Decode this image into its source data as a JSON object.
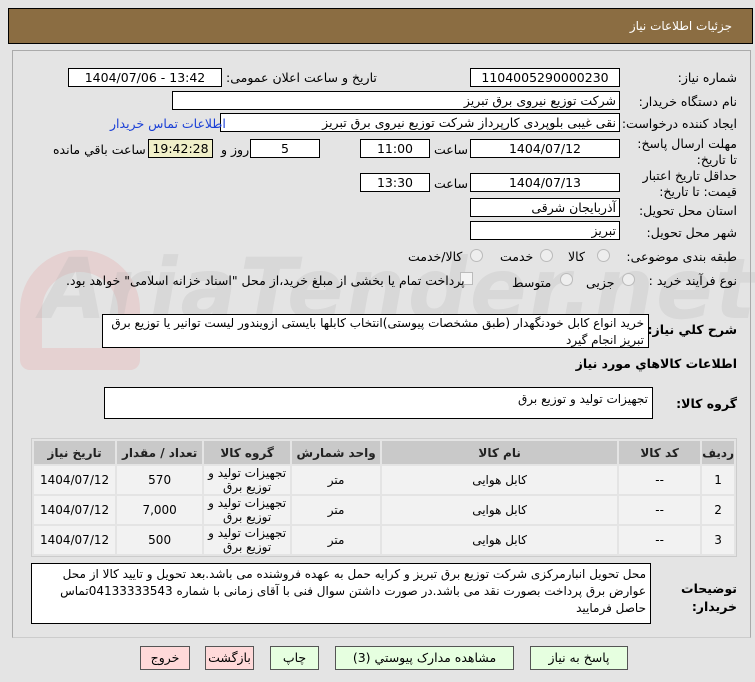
{
  "header": {
    "title": "جزئیات اطلاعات نیاز"
  },
  "watermark": "AriaTender.net",
  "fields": {
    "need_number_label": "شماره نیاز:",
    "need_number": "1104005290000230",
    "announce_label": "تاریخ و ساعت اعلان عمومی:",
    "announce_value": "1404/07/06 - 13:42",
    "buyer_label": "نام دستگاه خریدار:",
    "buyer_value": "شرکت توزیع نیروی برق تبریز",
    "creator_label": "ایجاد کننده درخواست:",
    "creator_value": "نقی غیبی بلوپردی کارپرداز شرکت توزیع نیروی برق تبریز",
    "contact_link": "اطلاعات تماس خریدار",
    "deadline_label": "مهلت ارسال پاسخ: تا تاریخ:",
    "deadline_date": "1404/07/12",
    "time_label": "ساعت",
    "deadline_time": "11:00",
    "days": "5",
    "days_label": "روز و",
    "remaining": "19:42:28",
    "remaining_label": "ساعت باقي مانده",
    "validity_label": "حداقل تاریخ اعتبار قیمت: تا تاریخ:",
    "validity_date": "1404/07/13",
    "validity_time": "13:30",
    "province_label": "استان محل تحویل:",
    "province_value": "آذربایجان شرقی",
    "city_label": "شهر محل تحویل:",
    "city_value": "تبریز",
    "category_label": "طبقه بندی موضوعی:",
    "category_options": [
      "کالا",
      "خدمت",
      "کالا/خدمت"
    ],
    "category_selected": "کالا",
    "process_label": "نوع فرآیند خرید :",
    "process_options": [
      "جزیی",
      "متوسط"
    ],
    "treasury_text": "پرداخت تمام یا بخشی از مبلغ خرید،از محل \"اسناد خزانه اسلامی\" خواهد بود.",
    "description_label": "شرح کلي نیاز:",
    "description": "خرید انواع کابل خودنگهدار (طبق مشخصات پیوستی)انتخاب کابلها بایستی ازویندور لیست توانیر یا توزیع برق تبریز انجام گیرد",
    "goods_heading": "اطلاعات کالاهاي مورد نیاز",
    "group_label": "گروه کالا:",
    "group_value": "تجهیزات تولید و توزیع برق",
    "notes_label": "توضیحات خریدار:",
    "notes": "محل تحویل انبارمرکزی شرکت توزیع برق تبریز و کرایه حمل به عهده فروشنده می باشد.بعد تحویل و تایید کالا از محل عوارض برق پرداخت بصورت نقد می باشد.در صورت داشتن سوال فنی با آقای زمانی با شماره 04133333543تماس حاصل فرمایید"
  },
  "table": {
    "headers": [
      "ردیف",
      "کد کالا",
      "نام کالا",
      "واحد شمارش",
      "گروه کالا",
      "تعداد / مقدار",
      "تاریخ نیاز"
    ],
    "rows": [
      [
        "1",
        "--",
        "کابل هوایی",
        "متر",
        "تجهیزات تولید و توزیع برق",
        "570",
        "1404/07/12"
      ],
      [
        "2",
        "--",
        "کابل هوایی",
        "متر",
        "تجهیزات تولید و توزیع برق",
        "7,000",
        "1404/07/12"
      ],
      [
        "3",
        "--",
        "کابل هوایی",
        "متر",
        "تجهیزات تولید و توزیع برق",
        "500",
        "1404/07/12"
      ]
    ]
  },
  "buttons": {
    "reply": "پاسخ به نیاز",
    "attachments": "مشاهده مدارک پیوستي (3)",
    "print": "چاپ",
    "back": "بازگشت",
    "exit": "خروج"
  },
  "colors": {
    "header": "#8b6d42",
    "button_green": "#e6ffe0",
    "button_red": "#ffd9d9",
    "link": "#1a3fd6"
  }
}
